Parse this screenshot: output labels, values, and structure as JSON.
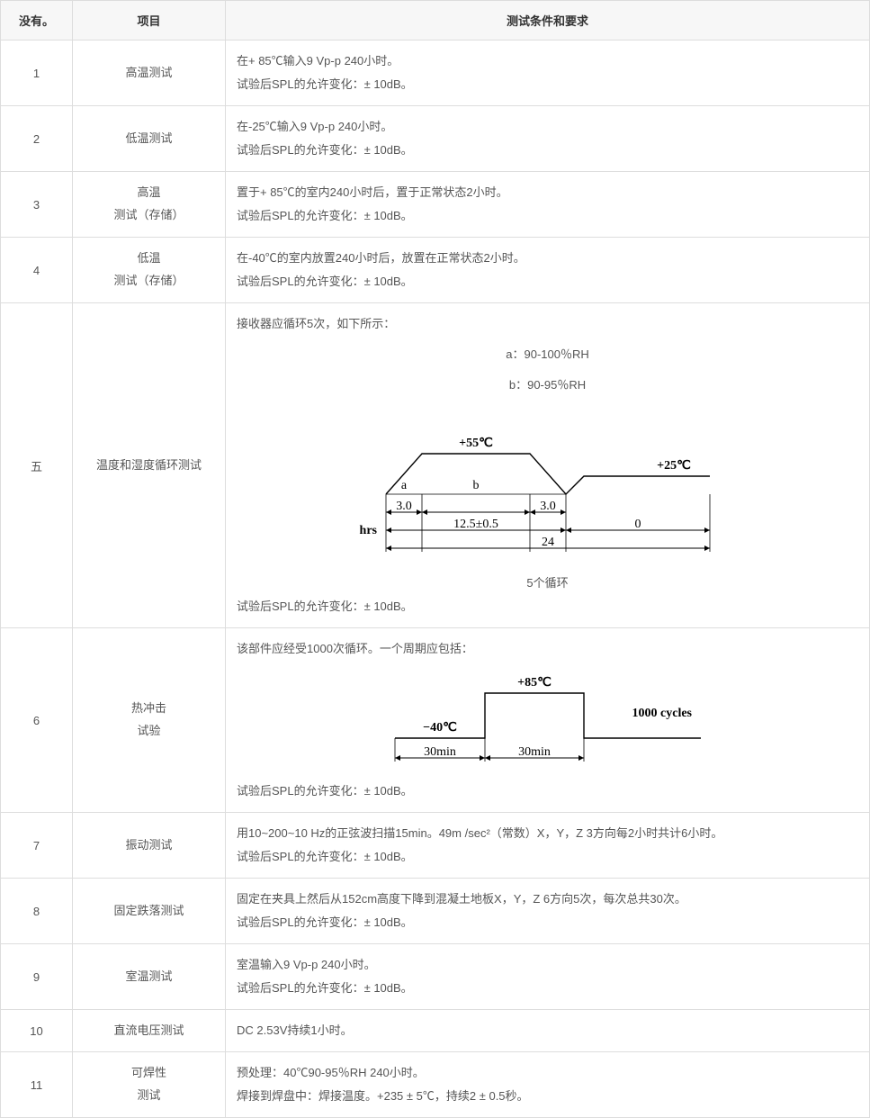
{
  "headers": {
    "no": "没有。",
    "item": "项目",
    "req": "测试条件和要求"
  },
  "rows": [
    {
      "idx": "1",
      "item": "高温测试",
      "lines": [
        "在+ 85℃输入9 Vp-p 240小时。",
        "试验后SPL的允许变化：± 10dB。"
      ]
    },
    {
      "idx": "2",
      "item": "低温测试",
      "lines": [
        "在-25℃输入9 Vp-p 240小时。",
        "试验后SPL的允许变化：± 10dB。"
      ]
    },
    {
      "idx": "3",
      "item": "高温\n测试（存储）",
      "lines": [
        "置于+ 85℃的室内240小时后，置于正常状态2小时。",
        "试验后SPL的允许变化：± 10dB。"
      ]
    },
    {
      "idx": "4",
      "item": "低温\n测试（存储）",
      "lines": [
        "在-40℃的室内放置240小时后，放置在正常状态2小时。",
        "试验后SPL的允许变化：± 10dB。"
      ]
    },
    {
      "idx": "五",
      "item": "温度和湿度循环测试",
      "intro": "接收器应循环5次，如下所示：",
      "legend_a": "a：90-100％RH",
      "legend_b": "b：90-95％RH",
      "diagram": "humidity",
      "caption": "5个循环",
      "tail": "试验后SPL的允许变化：± 10dB。"
    },
    {
      "idx": "6",
      "item": "热冲击\n试验",
      "intro": "该部件应经受1000次循环。一个周期应包括：",
      "diagram": "thermal",
      "tail": "试验后SPL的允许变化：± 10dB。"
    },
    {
      "idx": "7",
      "item": "振动测试",
      "lines": [
        "用10~200~10 Hz的正弦波扫描15min。49m /sec²（常数）X，Y，Z 3方向每2小时共计6小时。",
        "试验后SPL的允许变化：± 10dB。"
      ]
    },
    {
      "idx": "8",
      "item": "固定跌落测试",
      "lines": [
        "固定在夹具上然后从152cm高度下降到混凝土地板X，Y，Z 6方向5次，每次总共30次。",
        "试验后SPL的允许变化：± 10dB。"
      ]
    },
    {
      "idx": "9",
      "item": "室温测试",
      "lines": [
        "室温输入9 Vp-p 240小时。",
        "试验后SPL的允许变化：± 10dB。"
      ]
    },
    {
      "idx": "10",
      "item": "直流电压测试",
      "lines": [
        "DC 2.53V持续1小时。"
      ]
    },
    {
      "idx": "11",
      "item": "可焊性\n测试",
      "lines": [
        "预处理：40℃90-95％RH 240小时。",
        "焊接到焊盘中：焊接温度。+235 ± 5℃，持续2 ± 0.5秒。"
      ]
    }
  ],
  "humidity_diagram": {
    "top_temp": "+55℃",
    "right_temp": "+25℃",
    "a_label": "a",
    "a_val": "3.0",
    "b_label": "b",
    "r_val": "3.0",
    "hrs": "hrs",
    "mid": "12.5±0.5",
    "zero": "0",
    "total": "24",
    "stroke": "#000000",
    "stroke_w": 1.4
  },
  "thermal_diagram": {
    "low": "−40℃",
    "high": "+85℃",
    "cycles": "1000 cycles",
    "t1": "30min",
    "t2": "30min",
    "stroke": "#000000",
    "stroke_w": 1.4
  },
  "style": {
    "border_color": "#dddddd",
    "header_bg": "#f7f7f7",
    "text_color": "#555555"
  }
}
